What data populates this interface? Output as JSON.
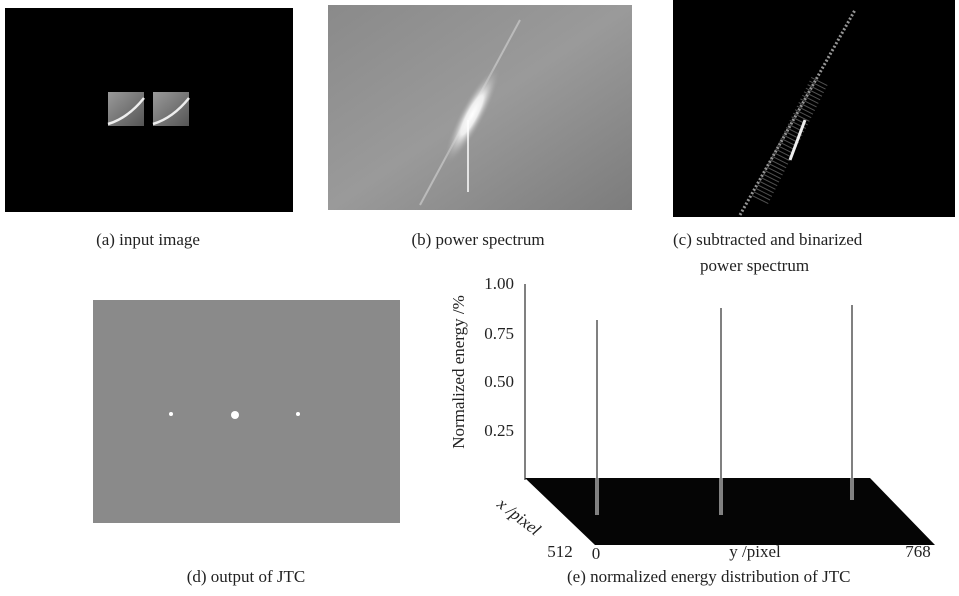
{
  "panels": [
    {
      "caption": "(a) input image"
    },
    {
      "caption": "(b) power spectrum"
    },
    {
      "caption": [
        "(c) subtracted and binarized",
        "power spectrum"
      ]
    },
    {
      "caption": "(d) output of JTC"
    },
    {
      "caption": "(e) normalized energy distribution of JTC"
    }
  ],
  "plot": {
    "z_label": "Normalized energy /%",
    "z_ticks": [
      "1.00",
      "0.75",
      "0.50",
      "0.25"
    ],
    "x_label": "x /pixel",
    "x_tick": "512",
    "y_label": "y /pixel",
    "y_ticks": [
      "0",
      "768"
    ]
  }
}
